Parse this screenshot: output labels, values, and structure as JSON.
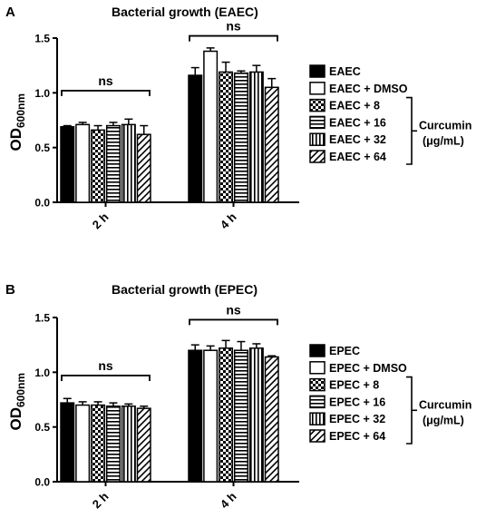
{
  "chart_data": [
    {
      "type": "bar",
      "panel_label": "A",
      "title": "Bacterial growth (EAEC)",
      "ylabel_main": "OD",
      "ylabel_sub": "600nm",
      "ylim": [
        0,
        1.5
      ],
      "yticks": [
        "0.0",
        "0.5",
        "1.0",
        "1.5"
      ],
      "categories": [
        "2 h",
        "4 h"
      ],
      "series": [
        {
          "name": "EAEC",
          "pattern": "solid",
          "values": [
            0.69,
            1.16
          ],
          "errors": [
            0.01,
            0.07
          ]
        },
        {
          "name": "EAEC + DMSO",
          "pattern": "open",
          "values": [
            0.71,
            1.38
          ],
          "errors": [
            0.02,
            0.03
          ]
        },
        {
          "name": "EAEC + 8",
          "pattern": "checker",
          "values": [
            0.66,
            1.19
          ],
          "errors": [
            0.04,
            0.09
          ]
        },
        {
          "name": "EAEC + 16",
          "pattern": "hlines",
          "values": [
            0.7,
            1.18
          ],
          "errors": [
            0.03,
            0.02
          ]
        },
        {
          "name": "EAEC + 32",
          "pattern": "vlines",
          "values": [
            0.71,
            1.19
          ],
          "errors": [
            0.05,
            0.06
          ]
        },
        {
          "name": "EAEC + 64",
          "pattern": "diag",
          "values": [
            0.62,
            1.05
          ],
          "errors": [
            0.08,
            0.08
          ]
        }
      ],
      "significance": [
        {
          "category_index": 0,
          "label": "ns",
          "level": 1.02
        },
        {
          "category_index": 1,
          "label": "ns",
          "level": 1.52
        }
      ],
      "bracket": {
        "label_line1": "Curcumin",
        "label_line2": "(μg/mL)",
        "from_series": 2,
        "to_series": 5
      }
    },
    {
      "type": "bar",
      "panel_label": "B",
      "title": "Bacterial growth (EPEC)",
      "ylabel_main": "OD",
      "ylabel_sub": "600nm",
      "ylim": [
        0,
        1.5
      ],
      "yticks": [
        "0.0",
        "0.5",
        "1.0",
        "1.5"
      ],
      "categories": [
        "2 h",
        "4 h"
      ],
      "series": [
        {
          "name": "EPEC",
          "pattern": "solid",
          "values": [
            0.72,
            1.2
          ],
          "errors": [
            0.04,
            0.05
          ]
        },
        {
          "name": "EPEC + DMSO",
          "pattern": "open",
          "values": [
            0.7,
            1.2
          ],
          "errors": [
            0.03,
            0.04
          ]
        },
        {
          "name": "EPEC + 8",
          "pattern": "checker",
          "values": [
            0.7,
            1.22
          ],
          "errors": [
            0.03,
            0.07
          ]
        },
        {
          "name": "EPEC + 16",
          "pattern": "hlines",
          "values": [
            0.69,
            1.2
          ],
          "errors": [
            0.03,
            0.08
          ]
        },
        {
          "name": "EPEC + 32",
          "pattern": "vlines",
          "values": [
            0.69,
            1.22
          ],
          "errors": [
            0.02,
            0.04
          ]
        },
        {
          "name": "EPEC + 64",
          "pattern": "diag",
          "values": [
            0.67,
            1.14
          ],
          "errors": [
            0.02,
            0.01
          ]
        }
      ],
      "significance": [
        {
          "category_index": 0,
          "label": "ns",
          "level": 0.97
        },
        {
          "category_index": 1,
          "label": "ns",
          "level": 1.48
        }
      ],
      "bracket": {
        "label_line1": "Curcumin",
        "label_line2": "(μg/mL)",
        "from_series": 2,
        "to_series": 5
      }
    }
  ]
}
